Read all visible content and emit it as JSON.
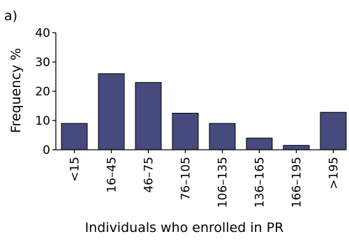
{
  "chart_data": {
    "type": "bar",
    "panel_label": "a)",
    "categories": [
      "<15",
      "16–45",
      "46–75",
      "76–105",
      "106–135",
      "136–165",
      "166–195",
      ">195"
    ],
    "values": [
      9,
      26,
      23,
      12.5,
      9,
      4,
      1.5,
      12.8
    ],
    "xlabel": "Individuals who enrolled in PR",
    "ylabel": "Frequency %",
    "ylim": [
      0,
      40
    ],
    "yticks": [
      "0",
      "10",
      "20",
      "30",
      "40"
    ],
    "grid": false,
    "bar_color": "#464a7c"
  }
}
